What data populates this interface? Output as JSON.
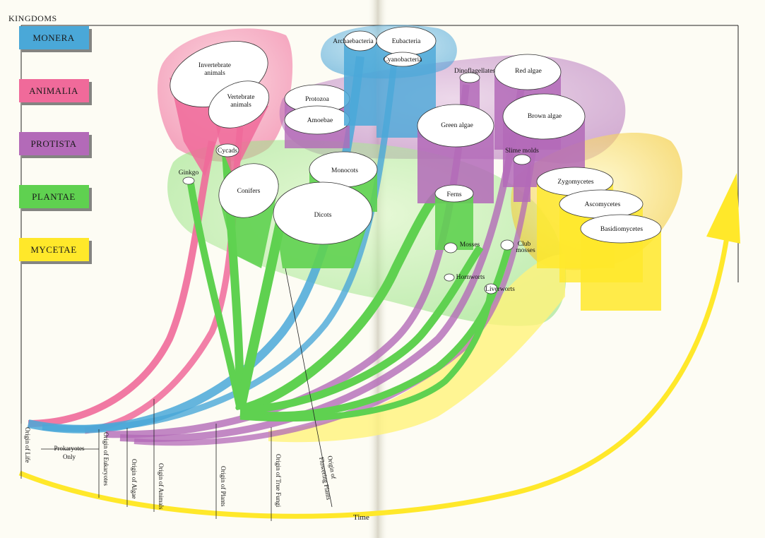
{
  "header": {
    "title": "KINGDOMS"
  },
  "kingdoms": [
    {
      "name": "MONERA",
      "color": "#4aa8d8"
    },
    {
      "name": "ANIMALIA",
      "color": "#f06a9a"
    },
    {
      "name": "PROTISTA",
      "color": "#b36ab8"
    },
    {
      "name": "PLANTAE",
      "color": "#5fd150"
    },
    {
      "name": "MYCETAE",
      "color": "#ffe82a"
    }
  ],
  "groups": {
    "invertebrate": "Invertebrate animals",
    "vertebrate": "Vertebrate animals",
    "archaebacteria": "Archaebacteria",
    "eubacteria": "Eubacteria",
    "cyanobacteria": "Cyanobacteria",
    "protozoa": "Protozoa",
    "amoebae": "Amoebae",
    "dinoflagellates": "Dinoflagellates",
    "red_algae": "Red algae",
    "green_algae": "Green algae",
    "brown_algae": "Brown algae",
    "slime_molds": "Slime molds",
    "cycads": "Cycads",
    "ginkgo": "Ginkgo",
    "conifers": "Conifers",
    "monocots": "Monocots",
    "dicots": "Dicots",
    "ferns": "Ferns",
    "mosses": "Mosses",
    "club_mosses": "Club mosses",
    "hornworts": "Hornworts",
    "liverworts": "Liverworts",
    "zygomycetes": "Zygomycetes",
    "ascomycetes": "Ascomycetes",
    "basidiomycetes": "Basidiomycetes"
  },
  "timeline": {
    "origin_of_life": "Origin of Life",
    "prokaryotes_only": "Prokaryotes Only",
    "origin_of_eukaryotes": "Origin of Eukaryotes",
    "origin_of_algae": "Origin of Algae",
    "origin_of_animals": "Origin of Animals",
    "origin_of_plants": "Origin of Plants",
    "origin_of_true_fungi": "Origin of True Fungi",
    "origin_of_flowering_plants": "Origin of Flowering Plants",
    "time_label": "Time"
  },
  "colors": {
    "monera": "#4aa8d8",
    "animalia": "#f06a9a",
    "protista": "#b36ab8",
    "plantae": "#5fd150",
    "mycetae": "#ffe82a",
    "page": "#fdfcf4",
    "fold": "#e8e6da"
  }
}
